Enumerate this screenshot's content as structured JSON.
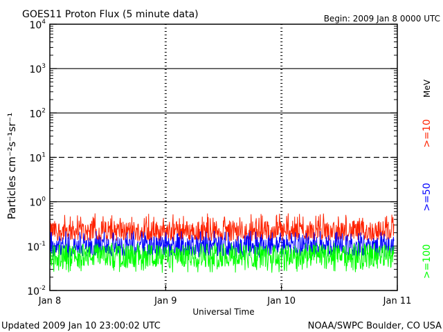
{
  "title": "GOES11 Proton Flux (5 minute data)",
  "begin_label": "Begin: 2009 Jan 8 0000 UTC",
  "footer_left": "Updated 2009 Jan 10 23:00:02 UTC",
  "footer_right": "NOAA/SWPC Boulder, CO USA",
  "chart_data": {
    "type": "line",
    "title": "GOES11 Proton Flux (5 minute data)",
    "xlabel": "Universal Time",
    "ylabel": "Particles cm⁻²s⁻¹sr⁻¹",
    "yscale": "log",
    "ylim": [
      0.01,
      10000
    ],
    "xlim": [
      0,
      3
    ],
    "x_ticks": [
      {
        "value": 0,
        "label": "Jan 8"
      },
      {
        "value": 1,
        "label": "Jan 9"
      },
      {
        "value": 2,
        "label": "Jan 10"
      },
      {
        "value": 3,
        "label": "Jan 11"
      }
    ],
    "y_ticks": [
      {
        "exp": -2,
        "base": "10",
        "sup": "-2"
      },
      {
        "exp": -1,
        "base": "10",
        "sup": "-1"
      },
      {
        "exp": 0,
        "base": "10",
        "sup": "0"
      },
      {
        "exp": 1,
        "base": "10",
        "sup": "1"
      },
      {
        "exp": 2,
        "base": "10",
        "sup": "2"
      },
      {
        "exp": 3,
        "base": "10",
        "sup": "3"
      },
      {
        "exp": 4,
        "base": "10",
        "sup": "4"
      }
    ],
    "horizontal_lines": [
      {
        "value": 1,
        "style": "solid"
      },
      {
        "value": 10,
        "style": "dashed"
      },
      {
        "value": 100,
        "style": "solid"
      },
      {
        "value": 1000,
        "style": "solid"
      }
    ],
    "units_label": "MeV",
    "series": [
      {
        "name": ">=10",
        "color": "#ff2200",
        "x_end": 2.97,
        "typical": 0.22,
        "low": 0.13,
        "high": 0.55
      },
      {
        "name": ">=50",
        "color": "#0000ff",
        "x_end": 2.97,
        "typical": 0.1,
        "low": 0.055,
        "high": 0.22
      },
      {
        "name": ">=100",
        "color": "#00ff00",
        "x_end": 2.97,
        "typical": 0.06,
        "low": 0.025,
        "high": 0.12
      }
    ]
  }
}
